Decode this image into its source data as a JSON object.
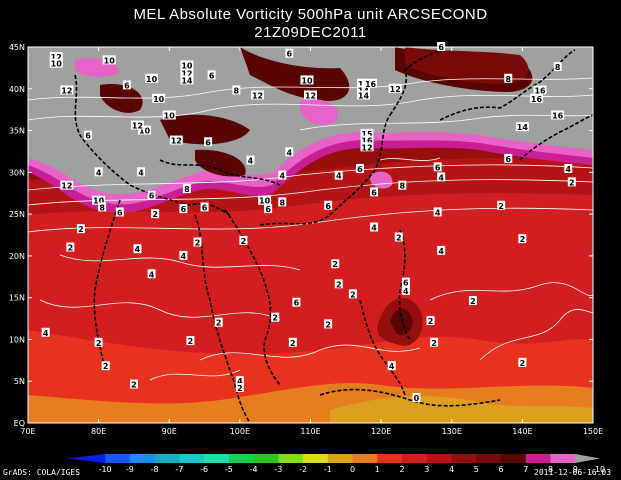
{
  "title_line1": "MEL Absolute Vorticity 500hPa unit ARCSECOND",
  "title_line2": "21Z09DEC2011",
  "credit": "GrADS: COLA/IGES",
  "timestamp": "2011-12-06-16:03",
  "map": {
    "lon_min": 70,
    "lon_max": 150,
    "lat_min": 0,
    "lat_max": 45,
    "lon_ticks": [
      "70E",
      "80E",
      "90E",
      "100E",
      "110E",
      "120E",
      "130E",
      "140E",
      "150E"
    ],
    "lat_ticks": [
      "EQ",
      "5N",
      "10N",
      "15N",
      "20N",
      "25N",
      "30N",
      "35N",
      "40N",
      "45N"
    ],
    "contour_labels": [
      {
        "t": "12",
        "lon": 74.0,
        "lat": 43.8
      },
      {
        "t": "10",
        "lon": 74.0,
        "lat": 43.0
      },
      {
        "t": "10",
        "lon": 81.5,
        "lat": 43.4
      },
      {
        "t": "12",
        "lon": 75.5,
        "lat": 39.8
      },
      {
        "t": "6",
        "lon": 84.0,
        "lat": 40.4
      },
      {
        "t": "10",
        "lon": 87.5,
        "lat": 41.2
      },
      {
        "t": "10",
        "lon": 92.5,
        "lat": 42.8
      },
      {
        "t": "12",
        "lon": 92.5,
        "lat": 41.8
      },
      {
        "t": "14",
        "lon": 92.5,
        "lat": 41.0
      },
      {
        "t": "6",
        "lon": 96.0,
        "lat": 41.6
      },
      {
        "t": "8",
        "lon": 99.5,
        "lat": 39.8
      },
      {
        "t": "6",
        "lon": 107.0,
        "lat": 44.2
      },
      {
        "t": "10",
        "lon": 88.5,
        "lat": 38.8
      },
      {
        "t": "12",
        "lon": 102.5,
        "lat": 39.2
      },
      {
        "t": "10",
        "lon": 109.5,
        "lat": 41.0
      },
      {
        "t": "12",
        "lon": 110.0,
        "lat": 39.2
      },
      {
        "t": "16",
        "lon": 117.5,
        "lat": 40.6
      },
      {
        "t": "14",
        "lon": 117.5,
        "lat": 39.8
      },
      {
        "t": "14",
        "lon": 117.5,
        "lat": 39.2
      },
      {
        "t": "16",
        "lon": 118.5,
        "lat": 40.6
      },
      {
        "t": "12",
        "lon": 122.0,
        "lat": 40.0
      },
      {
        "t": "6",
        "lon": 128.5,
        "lat": 45.0
      },
      {
        "t": "8",
        "lon": 138.0,
        "lat": 41.2
      },
      {
        "t": "16",
        "lon": 142.5,
        "lat": 39.8
      },
      {
        "t": "16",
        "lon": 142.0,
        "lat": 38.8
      },
      {
        "t": "8",
        "lon": 145.0,
        "lat": 42.6
      },
      {
        "t": "10",
        "lon": 86.5,
        "lat": 35.0
      },
      {
        "t": "12",
        "lon": 85.5,
        "lat": 35.6
      },
      {
        "t": "12",
        "lon": 91.0,
        "lat": 33.8
      },
      {
        "t": "6",
        "lon": 78.5,
        "lat": 34.4
      },
      {
        "t": "10",
        "lon": 90.0,
        "lat": 36.8
      },
      {
        "t": "15",
        "lon": 118.0,
        "lat": 34.6
      },
      {
        "t": "16",
        "lon": 118.0,
        "lat": 33.8
      },
      {
        "t": "12",
        "lon": 118.0,
        "lat": 33.0
      },
      {
        "t": "14",
        "lon": 140.0,
        "lat": 35.4
      },
      {
        "t": "16",
        "lon": 145.0,
        "lat": 36.8
      },
      {
        "t": "6",
        "lon": 95.5,
        "lat": 33.6
      },
      {
        "t": "4",
        "lon": 101.5,
        "lat": 31.4
      },
      {
        "t": "4",
        "lon": 107.0,
        "lat": 32.4
      },
      {
        "t": "4",
        "lon": 106.0,
        "lat": 29.6
      },
      {
        "t": "4",
        "lon": 114.0,
        "lat": 29.6
      },
      {
        "t": "6",
        "lon": 117.0,
        "lat": 30.4
      },
      {
        "t": "6",
        "lon": 128.0,
        "lat": 30.6
      },
      {
        "t": "4",
        "lon": 128.5,
        "lat": 29.4
      },
      {
        "t": "6",
        "lon": 138.0,
        "lat": 31.6
      },
      {
        "t": "4",
        "lon": 146.5,
        "lat": 30.4
      },
      {
        "t": "2",
        "lon": 147.0,
        "lat": 28.8
      },
      {
        "t": "12",
        "lon": 75.5,
        "lat": 28.4
      },
      {
        "t": "4",
        "lon": 80.0,
        "lat": 30.0
      },
      {
        "t": "4",
        "lon": 86.0,
        "lat": 30.0
      },
      {
        "t": "10",
        "lon": 80.0,
        "lat": 26.6
      },
      {
        "t": "8",
        "lon": 80.5,
        "lat": 25.8
      },
      {
        "t": "6",
        "lon": 83.0,
        "lat": 25.2
      },
      {
        "t": "6",
        "lon": 87.5,
        "lat": 27.2
      },
      {
        "t": "2",
        "lon": 88.0,
        "lat": 25.0
      },
      {
        "t": "6",
        "lon": 92.0,
        "lat": 25.6
      },
      {
        "t": "8",
        "lon": 92.5,
        "lat": 28.0
      },
      {
        "t": "6",
        "lon": 95.0,
        "lat": 25.8
      },
      {
        "t": "10",
        "lon": 103.5,
        "lat": 26.6
      },
      {
        "t": "6",
        "lon": 104.0,
        "lat": 25.6
      },
      {
        "t": "8",
        "lon": 106.0,
        "lat": 26.4
      },
      {
        "t": "6",
        "lon": 112.5,
        "lat": 26.0
      },
      {
        "t": "6",
        "lon": 119.0,
        "lat": 27.6
      },
      {
        "t": "8",
        "lon": 123.0,
        "lat": 28.4
      },
      {
        "t": "4",
        "lon": 119.0,
        "lat": 23.4
      },
      {
        "t": "2",
        "lon": 137.0,
        "lat": 26.0
      },
      {
        "t": "4",
        "lon": 128.0,
        "lat": 25.2
      },
      {
        "t": "2",
        "lon": 77.5,
        "lat": 23.2
      },
      {
        "t": "2",
        "lon": 76.0,
        "lat": 21.0
      },
      {
        "t": "2",
        "lon": 100.5,
        "lat": 21.8
      },
      {
        "t": "2",
        "lon": 94.0,
        "lat": 21.6
      },
      {
        "t": "4",
        "lon": 85.5,
        "lat": 20.8
      },
      {
        "t": "4",
        "lon": 92.0,
        "lat": 20.0
      },
      {
        "t": "4",
        "lon": 128.5,
        "lat": 20.6
      },
      {
        "t": "2",
        "lon": 122.5,
        "lat": 22.2
      },
      {
        "t": "2",
        "lon": 140.0,
        "lat": 22.0
      },
      {
        "t": "4",
        "lon": 87.5,
        "lat": 17.8
      },
      {
        "t": "2",
        "lon": 113.5,
        "lat": 19.0
      },
      {
        "t": "2",
        "lon": 114.0,
        "lat": 16.6
      },
      {
        "t": "6",
        "lon": 123.5,
        "lat": 16.8
      },
      {
        "t": "4",
        "lon": 123.5,
        "lat": 15.8
      },
      {
        "t": "2",
        "lon": 116.0,
        "lat": 15.4
      },
      {
        "t": "2",
        "lon": 133.0,
        "lat": 14.6
      },
      {
        "t": "6",
        "lon": 108.0,
        "lat": 14.4
      },
      {
        "t": "2",
        "lon": 105.0,
        "lat": 12.6
      },
      {
        "t": "2",
        "lon": 112.5,
        "lat": 11.8
      },
      {
        "t": "4",
        "lon": 72.5,
        "lat": 10.8
      },
      {
        "t": "2",
        "lon": 80.0,
        "lat": 9.6
      },
      {
        "t": "2",
        "lon": 93.0,
        "lat": 9.8
      },
      {
        "t": "2",
        "lon": 97.0,
        "lat": 12.0
      },
      {
        "t": "2",
        "lon": 107.5,
        "lat": 9.6
      },
      {
        "t": "2",
        "lon": 127.0,
        "lat": 12.2
      },
      {
        "t": "2",
        "lon": 127.5,
        "lat": 9.6
      },
      {
        "t": "4",
        "lon": 121.5,
        "lat": 6.8
      },
      {
        "t": "2",
        "lon": 140.0,
        "lat": 7.2
      },
      {
        "t": "2",
        "lon": 81.0,
        "lat": 6.8
      },
      {
        "t": "2",
        "lon": 85.0,
        "lat": 4.6
      },
      {
        "t": "4",
        "lon": 100.0,
        "lat": 5.0
      },
      {
        "t": "2",
        "lon": 100.0,
        "lat": 4.2
      },
      {
        "t": "0",
        "lon": 125.0,
        "lat": 3.0
      }
    ]
  },
  "colorbar": {
    "labels": [
      "-10",
      "-9",
      "-8",
      "-7",
      "-6",
      "-5",
      "-4",
      "-3",
      "-2",
      "-1",
      "0",
      "1",
      "2",
      "3",
      "4",
      "5",
      "6",
      "7",
      "8",
      "9",
      "10"
    ],
    "colors": [
      "#0a1ee8",
      "#1a5af0",
      "#1e8cf5",
      "#1ea8c8",
      "#1ec8c8",
      "#1ee0aa",
      "#1ecc50",
      "#28c81e",
      "#82dc1e",
      "#dcdc1e",
      "#dca01e",
      "#e67d1e",
      "#e6321e",
      "#d21e1e",
      "#b41414",
      "#960f0f",
      "#780a0a",
      "#5a0505",
      "#c81e96",
      "#e664c8",
      "#a0a0a0"
    ]
  }
}
